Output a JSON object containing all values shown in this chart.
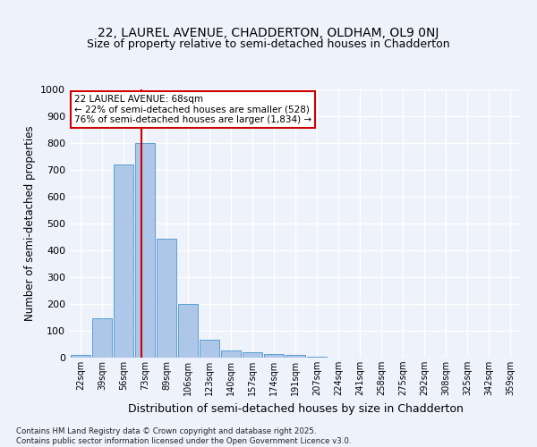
{
  "title": "22, LAUREL AVENUE, CHADDERTON, OLDHAM, OL9 0NJ",
  "subtitle": "Size of property relative to semi-detached houses in Chadderton",
  "xlabel": "Distribution of semi-detached houses by size in Chadderton",
  "ylabel": "Number of semi-detached properties",
  "categories": [
    "22sqm",
    "39sqm",
    "56sqm",
    "73sqm",
    "89sqm",
    "106sqm",
    "123sqm",
    "140sqm",
    "157sqm",
    "174sqm",
    "191sqm",
    "207sqm",
    "224sqm",
    "241sqm",
    "258sqm",
    "275sqm",
    "292sqm",
    "308sqm",
    "325sqm",
    "342sqm",
    "359sqm"
  ],
  "values": [
    10,
    148,
    720,
    800,
    445,
    200,
    68,
    28,
    20,
    15,
    10,
    5,
    0,
    0,
    0,
    0,
    0,
    0,
    0,
    0,
    0
  ],
  "bar_color": "#aec6e8",
  "bar_edge_color": "#5a9fd4",
  "vline_x": 2.85,
  "vline_color": "#cc0000",
  "annotation_line1": "22 LAUREL AVENUE: 68sqm",
  "annotation_line2": "← 22% of semi-detached houses are smaller (528)",
  "annotation_line3": "76% of semi-detached houses are larger (1,834) →",
  "annotation_box_color": "#ffffff",
  "annotation_box_edge": "#cc0000",
  "ylim": [
    0,
    1000
  ],
  "yticks": [
    0,
    100,
    200,
    300,
    400,
    500,
    600,
    700,
    800,
    900,
    1000
  ],
  "bg_color": "#eef2fb",
  "plot_bg_color": "#eef2fb",
  "grid_color": "#ffffff",
  "footer": "Contains HM Land Registry data © Crown copyright and database right 2025.\nContains public sector information licensed under the Open Government Licence v3.0.",
  "title_fontsize": 10,
  "subtitle_fontsize": 9,
  "xlabel_fontsize": 9,
  "ylabel_fontsize": 8.5
}
